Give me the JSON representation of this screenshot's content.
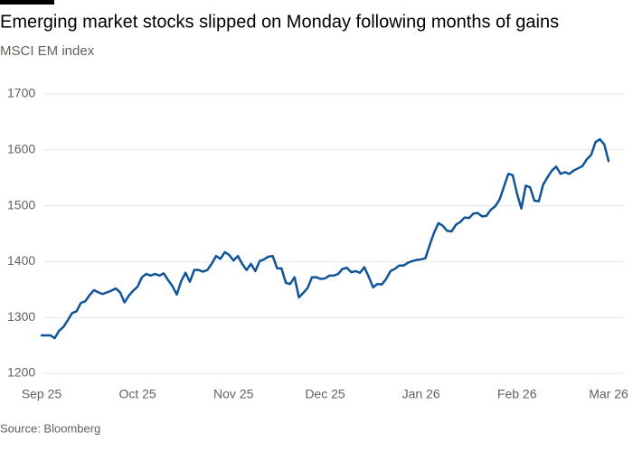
{
  "chart_data": {
    "type": "line",
    "title": "Emerging market stocks slipped on Monday following months of gains",
    "subtitle": "MSCI EM index",
    "source": "Source: Bloomberg",
    "categories": [
      "Sep 25",
      null,
      null,
      null,
      null,
      null,
      null,
      null,
      null,
      null,
      null,
      null,
      null,
      null,
      null,
      null,
      null,
      null,
      null,
      null,
      null,
      null,
      "Oct 25",
      null,
      null,
      null,
      null,
      null,
      null,
      null,
      null,
      null,
      null,
      null,
      null,
      null,
      null,
      null,
      null,
      null,
      null,
      null,
      null,
      null,
      "Nov 25",
      null,
      null,
      null,
      null,
      null,
      null,
      null,
      null,
      null,
      null,
      null,
      null,
      null,
      null,
      null,
      null,
      null,
      null,
      null,
      null,
      "Dec 25",
      null,
      null,
      null,
      null,
      null,
      null,
      null,
      null,
      null,
      null,
      null,
      null,
      null,
      null,
      null,
      null,
      null,
      null,
      null,
      null,
      null,
      "Jan 26",
      null,
      null,
      null,
      null,
      null,
      null,
      null,
      null,
      null,
      null,
      null,
      null,
      null,
      null,
      null,
      null,
      null,
      null,
      null,
      null,
      null,
      "Feb 26",
      null,
      null,
      null,
      null,
      null,
      null,
      null,
      null,
      null,
      null,
      null,
      null,
      null,
      null,
      null,
      null,
      null,
      null,
      null,
      null,
      "Mar 26"
    ],
    "values": [
      1268,
      1268,
      1268,
      1263,
      1276,
      1283,
      1295,
      1308,
      1311,
      1326,
      1329,
      1340,
      1349,
      1345,
      1342,
      1345,
      1348,
      1352,
      1345,
      1327,
      1339,
      1348,
      1355,
      1372,
      1378,
      1375,
      1378,
      1375,
      1379,
      1367,
      1356,
      1341,
      1365,
      1380,
      1364,
      1385,
      1385,
      1382,
      1385,
      1396,
      1410,
      1405,
      1417,
      1412,
      1402,
      1410,
      1396,
      1385,
      1396,
      1383,
      1401,
      1404,
      1409,
      1410,
      1388,
      1388,
      1362,
      1360,
      1372,
      1336,
      1344,
      1353,
      1372,
      1372,
      1369,
      1370,
      1375,
      1375,
      1378,
      1387,
      1389,
      1381,
      1383,
      1380,
      1390,
      1373,
      1354,
      1360,
      1359,
      1369,
      1383,
      1387,
      1393,
      1393,
      1398,
      1401,
      1403,
      1404,
      1406,
      1430,
      1452,
      1469,
      1464,
      1455,
      1454,
      1466,
      1471,
      1479,
      1478,
      1486,
      1487,
      1481,
      1482,
      1493,
      1499,
      1511,
      1534,
      1557,
      1555,
      1522,
      1495,
      1536,
      1533,
      1509,
      1508,
      1538,
      1551,
      1563,
      1570,
      1557,
      1560,
      1557,
      1563,
      1567,
      1571,
      1583,
      1591,
      1614,
      1619,
      1610,
      1580
    ],
    "color": "#0f5499",
    "ylim": [
      1200,
      1700
    ],
    "yticks": [
      1200,
      1300,
      1400,
      1500,
      1600,
      1700
    ],
    "grid": true
  }
}
